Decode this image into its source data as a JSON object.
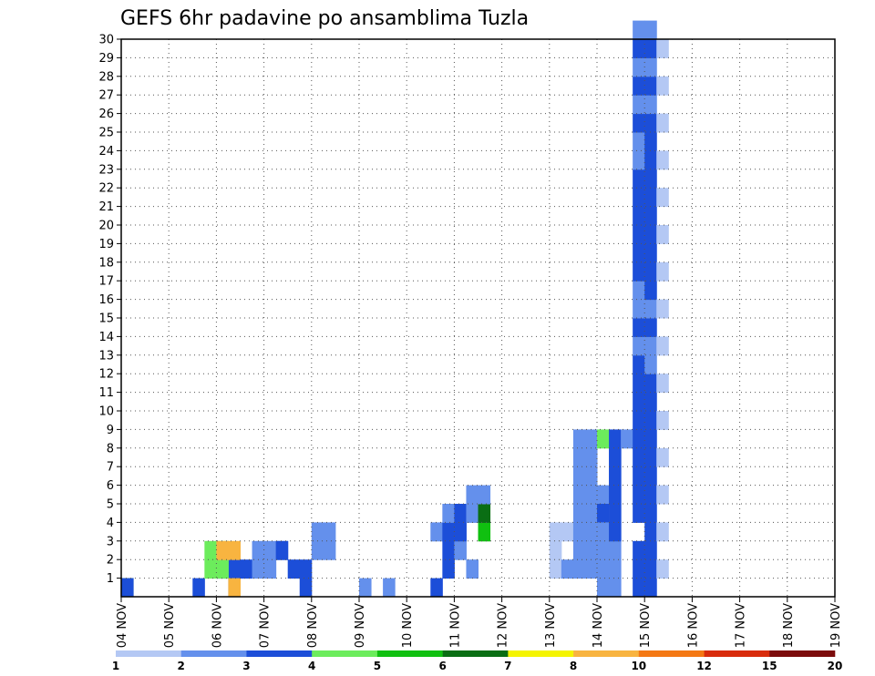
{
  "chart_data": {
    "type": "heatmap",
    "title": "GEFS 6hr padavine po ansamblima Tuzla",
    "xlabel": "",
    "ylabel": "",
    "x_ticks": [
      "04 NOV",
      "05 NOV",
      "06 NOV",
      "07 NOV",
      "08 NOV",
      "09 NOV",
      "10 NOV",
      "11 NOV",
      "12 NOV",
      "13 NOV",
      "14 NOV",
      "15 NOV",
      "16 NOV",
      "17 NOV",
      "18 NOV",
      "19 NOV"
    ],
    "y_ticks": [
      "1",
      "2",
      "3",
      "4",
      "5",
      "6",
      "7",
      "8",
      "9",
      "10",
      "11",
      "12",
      "13",
      "14",
      "15",
      "16",
      "17",
      "18",
      "19",
      "20",
      "21",
      "22",
      "23",
      "24",
      "25",
      "26",
      "27",
      "28",
      "29",
      "30"
    ],
    "ylim": [
      0,
      30
    ],
    "x_steps": 60,
    "grid": true,
    "colorbar": {
      "labels": [
        "1",
        "2",
        "3",
        "4",
        "5",
        "6",
        "7",
        "8",
        "10",
        "12",
        "15",
        "20"
      ],
      "colors": [
        "#b4c8f4",
        "#6490ec",
        "#1c4ed8",
        "#6cec5c",
        "#10c010",
        "#0a6e14",
        "#f4f400",
        "#f8b440",
        "#f47814",
        "#d82c0c",
        "#7c0c0c"
      ]
    },
    "cells": [
      [
        0,
        0,
        0
      ],
      [
        5,
        0,
        0
      ],
      [
        2,
        0,
        0
      ],
      [
        2,
        1,
        9
      ],
      [
        2,
        1,
        8
      ],
      [
        2,
        0,
        9
      ],
      [
        2,
        0,
        6
      ],
      [
        2,
        1,
        10
      ],
      [
        3,
        1,
        8
      ],
      [
        3,
        1,
        7
      ],
      [
        3,
        2,
        8
      ],
      [
        3,
        2,
        7
      ],
      [
        7,
        2,
        9
      ],
      [
        7,
        0,
        9
      ],
      [
        7,
        2,
        8
      ],
      [
        1,
        1,
        11
      ],
      [
        1,
        1,
        12
      ],
      [
        1,
        2,
        11
      ],
      [
        1,
        2,
        12
      ],
      [
        1,
        2,
        13
      ],
      [
        2,
        2,
        13
      ],
      [
        2,
        1,
        14
      ],
      [
        2,
        1,
        15
      ],
      [
        2,
        0,
        15
      ],
      [
        1,
        2,
        16
      ],
      [
        1,
        2,
        17
      ],
      [
        1,
        3,
        16
      ],
      [
        1,
        3,
        17
      ],
      [
        1,
        0,
        20
      ],
      [
        1,
        0,
        22
      ],
      [
        2,
        0,
        26
      ],
      [
        1,
        3,
        26
      ],
      [
        2,
        1,
        27
      ],
      [
        2,
        2,
        27
      ],
      [
        2,
        3,
        27
      ],
      [
        1,
        4,
        27
      ],
      [
        1,
        2,
        28
      ],
      [
        2,
        3,
        28
      ],
      [
        2,
        4,
        28
      ],
      [
        1,
        1,
        29
      ],
      [
        1,
        4,
        29
      ],
      [
        1,
        5,
        29
      ],
      [
        4,
        3,
        30
      ],
      [
        5,
        4,
        30
      ],
      [
        1,
        5,
        30
      ],
      [
        0,
        3,
        36
      ],
      [
        0,
        2,
        36
      ],
      [
        0,
        1,
        36
      ],
      [
        1,
        1,
        37
      ],
      [
        0,
        3,
        37
      ],
      [
        1,
        3,
        38
      ],
      [
        1,
        2,
        38
      ],
      [
        1,
        1,
        38
      ],
      [
        1,
        4,
        38
      ],
      [
        1,
        3,
        39
      ],
      [
        1,
        2,
        39
      ],
      [
        1,
        1,
        39
      ],
      [
        1,
        5,
        39
      ],
      [
        1,
        4,
        39
      ],
      [
        1,
        6,
        39
      ],
      [
        1,
        7,
        39
      ],
      [
        1,
        8,
        39
      ],
      [
        3,
        8,
        40
      ],
      [
        1,
        8,
        38
      ],
      [
        1,
        7,
        38
      ],
      [
        1,
        6,
        38
      ],
      [
        1,
        5,
        38
      ],
      [
        1,
        5,
        40
      ],
      [
        1,
        4,
        40
      ],
      [
        2,
        4,
        40
      ],
      [
        1,
        3,
        40
      ],
      [
        1,
        2,
        40
      ],
      [
        1,
        1,
        40
      ],
      [
        1,
        0,
        40
      ],
      [
        1,
        0,
        41
      ],
      [
        1,
        1,
        41
      ],
      [
        1,
        2,
        41
      ],
      [
        1,
        3,
        41
      ],
      [
        1,
        4,
        41
      ],
      [
        2,
        4,
        41
      ],
      [
        1,
        5,
        41
      ],
      [
        1,
        6,
        41
      ],
      [
        1,
        7,
        41
      ],
      [
        2,
        8,
        41
      ],
      [
        2,
        7,
        41
      ],
      [
        2,
        6,
        41
      ],
      [
        2,
        5,
        41
      ],
      [
        2,
        3,
        41
      ],
      [
        1,
        8,
        42
      ],
      [
        2,
        8,
        43
      ],
      [
        2,
        7,
        43
      ],
      [
        2,
        6,
        43
      ],
      [
        2,
        5,
        43
      ],
      [
        2,
        4,
        43
      ],
      [
        2,
        2,
        43
      ],
      [
        2,
        1,
        43
      ],
      [
        2,
        0,
        43
      ],
      [
        2,
        9,
        43
      ],
      [
        2,
        10,
        43
      ],
      [
        2,
        11,
        43
      ],
      [
        2,
        12,
        43
      ],
      [
        1,
        13,
        43
      ],
      [
        2,
        14,
        43
      ],
      [
        1,
        15,
        43
      ],
      [
        1,
        16,
        43
      ],
      [
        2,
        17,
        43
      ],
      [
        2,
        18,
        43
      ],
      [
        2,
        19,
        43
      ],
      [
        2,
        20,
        43
      ],
      [
        2,
        21,
        43
      ],
      [
        2,
        22,
        43
      ],
      [
        1,
        23,
        43
      ],
      [
        1,
        24,
        43
      ],
      [
        2,
        25,
        43
      ],
      [
        1,
        26,
        43
      ],
      [
        2,
        27,
        43
      ],
      [
        1,
        28,
        43
      ],
      [
        2,
        29,
        43
      ],
      [
        1,
        30,
        43
      ],
      [
        2,
        0,
        44
      ],
      [
        2,
        1,
        44
      ],
      [
        2,
        2,
        44
      ],
      [
        2,
        3,
        44
      ],
      [
        2,
        4,
        44
      ],
      [
        2,
        5,
        44
      ],
      [
        2,
        6,
        44
      ],
      [
        2,
        7,
        44
      ],
      [
        2,
        8,
        44
      ],
      [
        2,
        9,
        44
      ],
      [
        2,
        10,
        44
      ],
      [
        2,
        11,
        44
      ],
      [
        1,
        12,
        44
      ],
      [
        1,
        13,
        44
      ],
      [
        2,
        14,
        44
      ],
      [
        1,
        15,
        44
      ],
      [
        2,
        16,
        44
      ],
      [
        2,
        17,
        44
      ],
      [
        2,
        18,
        44
      ],
      [
        2,
        19,
        44
      ],
      [
        2,
        20,
        44
      ],
      [
        2,
        21,
        44
      ],
      [
        2,
        22,
        44
      ],
      [
        2,
        23,
        44
      ],
      [
        2,
        24,
        44
      ],
      [
        2,
        25,
        44
      ],
      [
        1,
        26,
        44
      ],
      [
        2,
        27,
        44
      ],
      [
        1,
        28,
        44
      ],
      [
        2,
        29,
        44
      ],
      [
        1,
        30,
        44
      ],
      [
        0,
        1,
        45
      ],
      [
        0,
        3,
        45
      ],
      [
        0,
        5,
        45
      ],
      [
        0,
        7,
        45
      ],
      [
        0,
        9,
        45
      ],
      [
        0,
        11,
        45
      ],
      [
        0,
        13,
        45
      ],
      [
        0,
        15,
        45
      ],
      [
        0,
        17,
        45
      ],
      [
        0,
        19,
        45
      ],
      [
        0,
        21,
        45
      ],
      [
        0,
        23,
        45
      ],
      [
        0,
        25,
        45
      ],
      [
        0,
        27,
        45
      ],
      [
        0,
        29,
        45
      ]
    ]
  }
}
